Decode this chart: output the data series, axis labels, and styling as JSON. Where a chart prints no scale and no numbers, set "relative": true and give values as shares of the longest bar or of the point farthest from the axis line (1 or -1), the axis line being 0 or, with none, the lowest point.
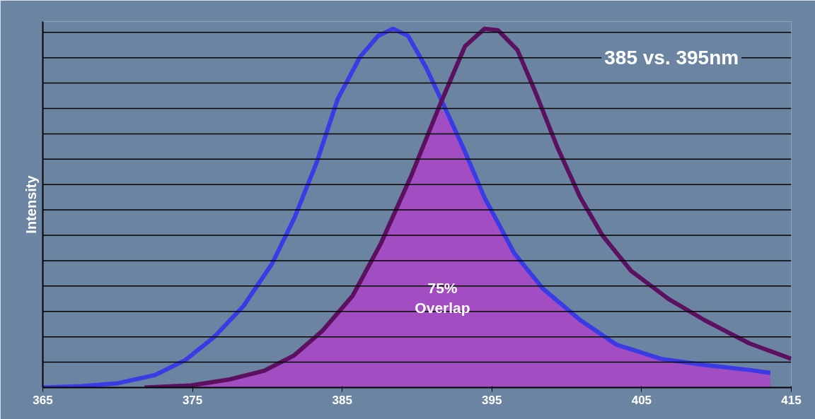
{
  "chart_data": {
    "type": "line",
    "relative": true,
    "ylabel": "Intensity",
    "xlim": [
      365,
      415
    ],
    "xticks": [
      365,
      375,
      385,
      395,
      405,
      415
    ],
    "grid": "y",
    "line_style": "solid",
    "annotations": [
      "385 vs. 395nm",
      "75%\nOverlap"
    ],
    "series": [
      {
        "type": "area",
        "color": "#a24dc2",
        "x": [
          371.8,
          374.9,
          377.4,
          379.8,
          381.8,
          383.7,
          385.7,
          387.6,
          389.6,
          391.5,
          391.9,
          393.1,
          394.5,
          396.5,
          398.4,
          400.9,
          403.3,
          406.3,
          409.2,
          412.2,
          413.6
        ],
        "values": [
          0,
          0.006,
          0.022,
          0.047,
          0.09,
          0.159,
          0.256,
          0.403,
          0.589,
          0.785,
          0.76,
          0.667,
          0.53,
          0.374,
          0.276,
          0.188,
          0.12,
          0.08,
          0.063,
          0.049,
          0.041
        ]
      },
      {
        "color": "#3b3be6",
        "x": [
          365,
          367.6,
          370,
          372.5,
          374.5,
          376.4,
          378.4,
          380.3,
          381.8,
          383.3,
          384.7,
          386.2,
          387.4,
          388.4,
          389.4,
          390.6,
          391.8,
          393.1,
          394.5,
          396.5,
          398.4,
          400.9,
          403.3,
          406.3,
          409.2,
          412.2,
          413.6
        ],
        "values": [
          0,
          0.004,
          0.012,
          0.035,
          0.076,
          0.139,
          0.227,
          0.344,
          0.472,
          0.628,
          0.804,
          0.922,
          0.98,
          1.0,
          0.98,
          0.892,
          0.785,
          0.667,
          0.53,
          0.374,
          0.276,
          0.188,
          0.12,
          0.08,
          0.063,
          0.049,
          0.041
        ]
      },
      {
        "color": "#5c1060",
        "x": [
          371.8,
          374.9,
          377.4,
          379.8,
          381.8,
          383.7,
          385.7,
          387.6,
          389.6,
          391.5,
          393.2,
          394.5,
          395.4,
          396.7,
          397.9,
          399.4,
          400.9,
          402.4,
          404.3,
          406.8,
          409.2,
          412.2,
          415
        ],
        "values": [
          0,
          0.006,
          0.022,
          0.047,
          0.09,
          0.159,
          0.256,
          0.403,
          0.589,
          0.785,
          0.951,
          1.0,
          0.996,
          0.941,
          0.824,
          0.667,
          0.53,
          0.423,
          0.325,
          0.247,
          0.188,
          0.123,
          0.08
        ]
      }
    ]
  }
}
